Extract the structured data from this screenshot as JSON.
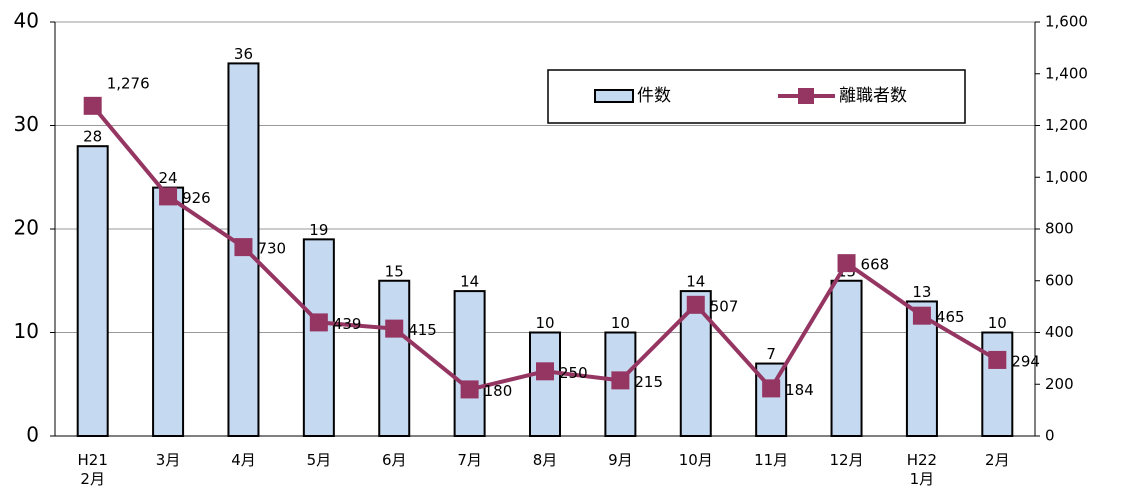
{
  "chart_data": {
    "type": "bar-line",
    "categories": [
      [
        "H21",
        "2月"
      ],
      [
        "3月"
      ],
      [
        "4月"
      ],
      [
        "5月"
      ],
      [
        "6月"
      ],
      [
        "7月"
      ],
      [
        "8月"
      ],
      [
        "9月"
      ],
      [
        "10月"
      ],
      [
        "11月"
      ],
      [
        "12月"
      ],
      [
        "H22",
        "1月"
      ],
      [
        "2月"
      ]
    ],
    "series": [
      {
        "name": "件数",
        "type": "bar",
        "color": "#c5d9f1",
        "values": [
          28,
          24,
          36,
          19,
          15,
          14,
          10,
          10,
          14,
          7,
          15,
          13,
          10
        ]
      },
      {
        "name": "離職者数",
        "type": "line",
        "axis": "y2",
        "color": "#953562",
        "values": [
          1276,
          926,
          730,
          439,
          415,
          180,
          250,
          215,
          507,
          184,
          668,
          465,
          294
        ],
        "value_labels": [
          "1,276",
          "926",
          "730",
          "439",
          "415",
          "180",
          "250",
          "215",
          "507",
          "184",
          "668",
          "465",
          "294"
        ]
      }
    ],
    "ylim": [
      0,
      40
    ],
    "yticks": [
      0,
      10,
      20,
      30,
      40
    ],
    "y2lim": [
      0,
      1600
    ],
    "y2ticks": [
      0,
      200,
      400,
      600,
      800,
      {
        "value": 1000,
        "label": "1,000"
      },
      {
        "value": 1200,
        "label": "1,200"
      },
      {
        "value": 1400,
        "label": "1,400"
      },
      {
        "value": 1600,
        "label": "1,600"
      }
    ],
    "grid": true
  }
}
